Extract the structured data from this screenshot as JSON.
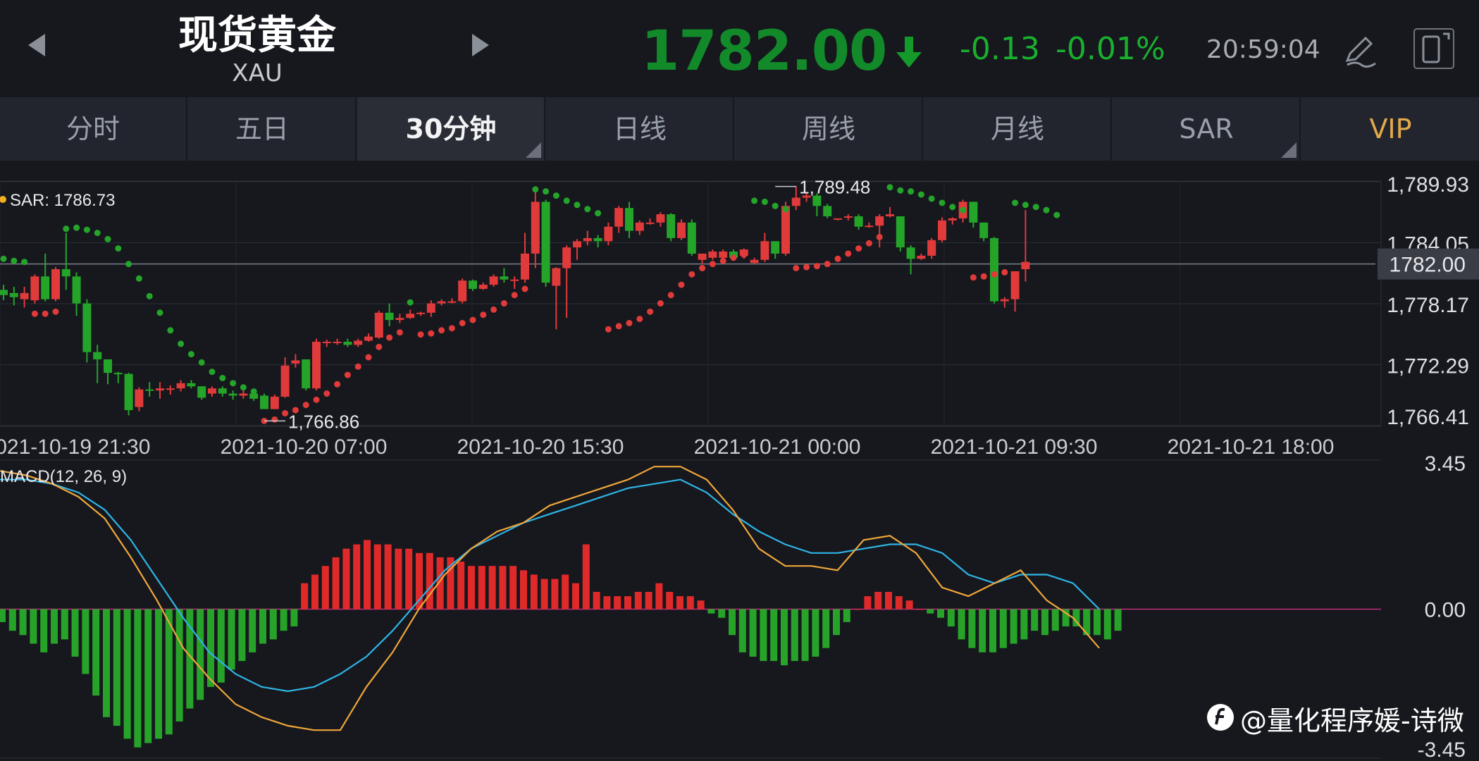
{
  "header": {
    "title": "现货黄金",
    "symbol": "XAU",
    "price": "1782.00",
    "change": "-0.13",
    "change_pct": "-0.01%",
    "time": "20:59:04",
    "icons": [
      "chevron-left-icon",
      "chevron-right-icon",
      "arrow-down-icon",
      "pen-icon",
      "rotate-screen-icon"
    ],
    "price_color": "#138a2a",
    "change_color": "#19b02e"
  },
  "tabs": [
    {
      "label": "分时"
    },
    {
      "label": "五日"
    },
    {
      "label": "30分钟"
    },
    {
      "label": "日线"
    },
    {
      "label": "周线"
    },
    {
      "label": "月线"
    },
    {
      "label": "SAR"
    },
    {
      "label": "VIP"
    }
  ],
  "active_tab": "30分钟",
  "watermark": "@量化程序媛-诗微",
  "chart_data": [
    {
      "type": "candlestick",
      "indicator_label": "SAR: 1786.73",
      "y_ticks": [
        "1,789.93",
        "1,784.05",
        "1,778.17",
        "1,772.29",
        "1,766.41"
      ],
      "ylim": [
        1766.41,
        1789.93
      ],
      "current_price": 1782.0,
      "current_price_label": "1782.00",
      "x_ticks": [
        "2021-10-19 21:30",
        "2021-10-20 07:00",
        "2021-10-20 15:30",
        "2021-10-21 00:00",
        "2021-10-21 09:30",
        "2021-10-21 18:00"
      ],
      "annotations": [
        {
          "label": "1,789.48",
          "value": 1789.48,
          "index": 74
        },
        {
          "label": "1,766.86",
          "value": 1766.86,
          "index": 25
        }
      ],
      "colors": {
        "up": "#e03a3a",
        "down": "#25a42a",
        "sar_up": "#e03a3a",
        "sar_down": "#25a42a"
      },
      "candles": [
        [
          1779.5,
          1779.0,
          1778.5,
          1780.0
        ],
        [
          1779.2,
          1778.8,
          1778.0,
          1779.8
        ],
        [
          1778.6,
          1779.2,
          1777.8,
          1779.8
        ],
        [
          1778.5,
          1780.8,
          1778.2,
          1781.0
        ],
        [
          1780.8,
          1778.6,
          1778.4,
          1783.0
        ],
        [
          1778.6,
          1781.5,
          1778.4,
          1781.7
        ],
        [
          1781.5,
          1780.8,
          1779.5,
          1785.0
        ],
        [
          1780.8,
          1778.2,
          1777.0,
          1781.2
        ],
        [
          1778.2,
          1773.5,
          1772.5,
          1778.6
        ],
        [
          1773.5,
          1772.8,
          1770.5,
          1774.2
        ],
        [
          1772.8,
          1771.5,
          1770.4,
          1772.8
        ],
        [
          1771.5,
          1771.4,
          1770.5,
          1771.6
        ],
        [
          1771.4,
          1767.9,
          1767.4,
          1771.5
        ],
        [
          1768.2,
          1769.9,
          1767.8,
          1770.1
        ],
        [
          1769.9,
          1769.8,
          1769.2,
          1770.6
        ],
        [
          1769.8,
          1770.0,
          1769.0,
          1770.6
        ],
        [
          1770.0,
          1770.0,
          1769.4,
          1770.3
        ],
        [
          1770.0,
          1770.5,
          1769.7,
          1770.8
        ],
        [
          1770.5,
          1770.2,
          1770.0,
          1770.8
        ],
        [
          1770.2,
          1769.1,
          1768.9,
          1770.2
        ],
        [
          1769.5,
          1770.0,
          1769.2,
          1770.2
        ],
        [
          1770.0,
          1769.5,
          1769.2,
          1770.2
        ],
        [
          1769.5,
          1769.3,
          1768.9,
          1769.8
        ],
        [
          1769.3,
          1769.5,
          1769.0,
          1769.9
        ],
        [
          1769.5,
          1769.0,
          1768.8,
          1769.8
        ],
        [
          1769.3,
          1768.0,
          1768.0,
          1769.5
        ],
        [
          1768.0,
          1769.2,
          1768.0,
          1769.4
        ],
        [
          1769.2,
          1772.2,
          1769.1,
          1773.0
        ],
        [
          1772.4,
          1772.7,
          1772.0,
          1773.3
        ],
        [
          1772.8,
          1770.0,
          1769.8,
          1772.8
        ],
        [
          1770.0,
          1774.5,
          1769.8,
          1774.8
        ],
        [
          1774.5,
          1774.5,
          1774.0,
          1774.7
        ],
        [
          1774.5,
          1774.5,
          1774.2,
          1774.8
        ],
        [
          1774.5,
          1774.2,
          1774.0,
          1774.8
        ],
        [
          1774.2,
          1774.6,
          1774.0,
          1774.8
        ],
        [
          1774.6,
          1775.0,
          1774.5,
          1775.3
        ],
        [
          1774.9,
          1777.3,
          1774.8,
          1777.5
        ],
        [
          1777.3,
          1776.6,
          1776.0,
          1778.2
        ],
        [
          1776.6,
          1776.8,
          1776.3,
          1777.2
        ],
        [
          1776.8,
          1777.2,
          1776.7,
          1777.6
        ],
        [
          1777.3,
          1777.3,
          1777.0,
          1777.4
        ],
        [
          1777.3,
          1778.2,
          1776.9,
          1778.5
        ],
        [
          1778.2,
          1778.4,
          1778.0,
          1778.6
        ],
        [
          1778.4,
          1778.4,
          1778.2,
          1778.7
        ],
        [
          1778.4,
          1780.4,
          1778.2,
          1780.6
        ],
        [
          1780.4,
          1779.6,
          1779.4,
          1780.5
        ],
        [
          1779.6,
          1780.0,
          1779.5,
          1780.2
        ],
        [
          1780.0,
          1780.8,
          1779.8,
          1781.0
        ],
        [
          1780.8,
          1780.5,
          1780.2,
          1781.6
        ],
        [
          1780.5,
          1780.5,
          1779.6,
          1780.8
        ],
        [
          1780.5,
          1783.0,
          1780.2,
          1785.0
        ],
        [
          1783.0,
          1788.0,
          1781.6,
          1789.2
        ],
        [
          1788.0,
          1780.2,
          1779.8,
          1788.2
        ],
        [
          1779.9,
          1781.6,
          1775.7,
          1781.7
        ],
        [
          1781.6,
          1783.6,
          1776.8,
          1783.8
        ],
        [
          1783.6,
          1784.2,
          1782.4,
          1784.4
        ],
        [
          1784.2,
          1784.5,
          1783.8,
          1785.2
        ],
        [
          1784.5,
          1784.2,
          1783.6,
          1784.8
        ],
        [
          1784.2,
          1785.6,
          1783.8,
          1786.0
        ],
        [
          1785.6,
          1787.4,
          1785.0,
          1787.6
        ],
        [
          1787.4,
          1785.2,
          1784.5,
          1788.0
        ],
        [
          1785.2,
          1786.0,
          1784.8,
          1786.2
        ],
        [
          1786.0,
          1786.0,
          1785.8,
          1786.4
        ],
        [
          1786.0,
          1786.8,
          1785.6,
          1787.0
        ],
        [
          1786.8,
          1784.5,
          1784.2,
          1786.9
        ],
        [
          1784.5,
          1786.0,
          1784.3,
          1786.3
        ],
        [
          1786.0,
          1783.0,
          1782.8,
          1786.3
        ],
        [
          1782.4,
          1783.0,
          1782.0,
          1783.0
        ],
        [
          1782.6,
          1783.2,
          1782.4,
          1783.4
        ],
        [
          1782.6,
          1783.2,
          1782.4,
          1783.4
        ],
        [
          1783.2,
          1782.6,
          1782.4,
          1783.4
        ],
        [
          1782.8,
          1783.4,
          1782.5,
          1783.5
        ],
        [
          1782.1,
          1782.4,
          1782.0,
          1782.6
        ],
        [
          1782.4,
          1784.2,
          1782.2,
          1785.0
        ],
        [
          1784.2,
          1783.0,
          1782.5,
          1784.2
        ],
        [
          1783.0,
          1787.6,
          1782.8,
          1788.0
        ],
        [
          1787.6,
          1788.4,
          1787.2,
          1789.5
        ],
        [
          1788.4,
          1788.6,
          1788.0,
          1788.9
        ],
        [
          1788.6,
          1787.6,
          1786.6,
          1788.8
        ],
        [
          1787.6,
          1786.6,
          1786.4,
          1787.8
        ],
        [
          1786.4,
          1786.4,
          1786.2,
          1786.4
        ],
        [
          1786.6,
          1786.6,
          1786.2,
          1786.8
        ],
        [
          1786.6,
          1785.6,
          1785.3,
          1786.8
        ],
        [
          1785.6,
          1785.7,
          1785.5,
          1786.0
        ],
        [
          1785.7,
          1786.6,
          1783.6,
          1786.8
        ],
        [
          1786.6,
          1786.8,
          1786.5,
          1787.5
        ],
        [
          1786.6,
          1783.6,
          1783.2,
          1786.6
        ],
        [
          1783.6,
          1782.5,
          1781.0,
          1783.8
        ],
        [
          1782.5,
          1782.8,
          1782.4,
          1783.0
        ],
        [
          1782.8,
          1784.3,
          1782.5,
          1784.5
        ],
        [
          1784.3,
          1786.2,
          1784.1,
          1786.5
        ],
        [
          1786.2,
          1786.4,
          1785.8,
          1786.5
        ],
        [
          1786.4,
          1788.0,
          1786.0,
          1788.2
        ],
        [
          1788.0,
          1786.0,
          1785.5,
          1788.0
        ],
        [
          1786.0,
          1784.5,
          1784.2,
          1786.0
        ],
        [
          1784.5,
          1778.4,
          1778.2,
          1784.6
        ],
        [
          1778.4,
          1778.6,
          1777.8,
          1778.8
        ],
        [
          1778.6,
          1781.3,
          1777.4,
          1781.3
        ],
        [
          1781.5,
          1782.2,
          1780.3,
          1787.2
        ]
      ],
      "sar": [
        [
          1782.5,
          "d"
        ],
        [
          1782.3,
          "d"
        ],
        [
          1782.2,
          "d"
        ],
        [
          1777.2,
          "u"
        ],
        [
          1777.2,
          "u"
        ],
        [
          1777.4,
          "u"
        ],
        [
          1785.4,
          "d"
        ],
        [
          1785.5,
          "d"
        ],
        [
          1785.3,
          "d"
        ],
        [
          1785.0,
          "d"
        ],
        [
          1784.4,
          "d"
        ],
        [
          1783.5,
          "d"
        ],
        [
          1782.0,
          "d"
        ],
        [
          1780.6,
          "d"
        ],
        [
          1778.9,
          "d"
        ],
        [
          1777.3,
          "d"
        ],
        [
          1775.6,
          "d"
        ],
        [
          1774.3,
          "d"
        ],
        [
          1773.3,
          "d"
        ],
        [
          1772.5,
          "d"
        ],
        [
          1771.6,
          "d"
        ],
        [
          1771.0,
          "d"
        ],
        [
          1770.5,
          "d"
        ],
        [
          1770.1,
          "d"
        ],
        [
          1769.7,
          "d"
        ],
        [
          1766.86,
          "u"
        ],
        [
          1767.0,
          "u"
        ],
        [
          1767.6,
          "u"
        ],
        [
          1767.9,
          "u"
        ],
        [
          1768.4,
          "u"
        ],
        [
          1768.9,
          "u"
        ],
        [
          1769.5,
          "u"
        ],
        [
          1770.4,
          "u"
        ],
        [
          1771.3,
          "u"
        ],
        [
          1772.1,
          "u"
        ],
        [
          1773.0,
          "u"
        ],
        [
          1774.0,
          "u"
        ],
        [
          1774.9,
          "u"
        ],
        [
          1775.4,
          "u"
        ],
        [
          1778.3,
          "d"
        ],
        [
          1775.2,
          "u"
        ],
        [
          1775.3,
          "u"
        ],
        [
          1775.6,
          "u"
        ],
        [
          1775.8,
          "u"
        ],
        [
          1776.3,
          "u"
        ],
        [
          1776.6,
          "u"
        ],
        [
          1777.1,
          "u"
        ],
        [
          1777.6,
          "u"
        ],
        [
          1778.2,
          "u"
        ],
        [
          1779.0,
          "u"
        ],
        [
          1779.6,
          "u"
        ],
        [
          1789.2,
          "d"
        ],
        [
          1789.0,
          "d"
        ],
        [
          1788.6,
          "d"
        ],
        [
          1788.1,
          "d"
        ],
        [
          1787.7,
          "d"
        ],
        [
          1787.3,
          "d"
        ],
        [
          1786.9,
          "d"
        ],
        [
          1775.7,
          "u"
        ],
        [
          1776.0,
          "u"
        ],
        [
          1776.3,
          "u"
        ],
        [
          1776.7,
          "u"
        ],
        [
          1777.4,
          "u"
        ],
        [
          1778.2,
          "u"
        ],
        [
          1779.0,
          "u"
        ],
        [
          1780.0,
          "u"
        ],
        [
          1781.0,
          "u"
        ],
        [
          1781.6,
          "u"
        ],
        [
          1782.0,
          "u"
        ],
        [
          1782.3,
          "u"
        ],
        [
          1782.6,
          "u"
        ],
        [
          1782.9,
          "u"
        ],
        [
          1788.1,
          "d"
        ],
        [
          1788.0,
          "d"
        ],
        [
          1787.6,
          "d"
        ],
        [
          1787.3,
          "d"
        ],
        [
          1781.6,
          "u"
        ],
        [
          1781.7,
          "u"
        ],
        [
          1781.8,
          "u"
        ],
        [
          1782.0,
          "u"
        ],
        [
          1782.5,
          "u"
        ],
        [
          1783.0,
          "u"
        ],
        [
          1783.5,
          "u"
        ],
        [
          1784.0,
          "u"
        ],
        [
          1784.6,
          "u"
        ],
        [
          1789.4,
          "d"
        ],
        [
          1789.1,
          "d"
        ],
        [
          1789.0,
          "d"
        ],
        [
          1788.7,
          "d"
        ],
        [
          1788.3,
          "d"
        ],
        [
          1787.9,
          "d"
        ],
        [
          1787.5,
          "d"
        ],
        [
          1787.2,
          "d"
        ],
        [
          1780.7,
          "u"
        ],
        [
          1780.8,
          "u"
        ],
        [
          1781.0,
          "u"
        ],
        [
          1781.2,
          "u"
        ],
        [
          1787.9,
          "d"
        ],
        [
          1787.7,
          "d"
        ],
        [
          1787.5,
          "d"
        ],
        [
          1787.2,
          "d"
        ],
        [
          1786.73,
          "d"
        ]
      ]
    },
    {
      "type": "macd",
      "label": "MACD(12, 26, 9)",
      "y_ticks": [
        "3.45",
        "0.00",
        "-3.45"
      ],
      "ylim": [
        -3.45,
        3.45
      ],
      "colors": {
        "dif": "#f0a63a",
        "dea": "#2fb4e6",
        "hist_pos": "#e02a2a",
        "hist_neg": "#28a32a"
      },
      "hist": [
        -0.3,
        -0.5,
        -0.6,
        -0.8,
        -1.0,
        -0.8,
        -0.7,
        -1.1,
        -1.5,
        -2.0,
        -2.5,
        -2.7,
        -3.0,
        -3.2,
        -3.1,
        -3.0,
        -2.9,
        -2.6,
        -2.3,
        -2.1,
        -1.8,
        -1.7,
        -1.4,
        -1.2,
        -1.0,
        -0.8,
        -0.7,
        -0.5,
        -0.4,
        0.6,
        0.8,
        1.0,
        1.2,
        1.4,
        1.5,
        1.6,
        1.5,
        1.5,
        1.4,
        1.4,
        1.3,
        1.3,
        1.2,
        1.2,
        1.1,
        1.0,
        1.0,
        1.0,
        1.0,
        1.0,
        0.9,
        0.8,
        0.7,
        0.7,
        0.8,
        0.6,
        1.5,
        0.4,
        0.3,
        0.3,
        0.3,
        0.4,
        0.4,
        0.6,
        0.4,
        0.3,
        0.3,
        0.2,
        -0.1,
        -0.2,
        -0.6,
        -1.0,
        -1.1,
        -1.2,
        -1.2,
        -1.3,
        -1.2,
        -1.2,
        -1.1,
        -0.9,
        -0.6,
        -0.3,
        0.0,
        0.3,
        0.4,
        0.4,
        0.3,
        0.2,
        0.0,
        -0.1,
        -0.2,
        -0.4,
        -0.7,
        -0.9,
        -1.0,
        -1.0,
        -0.9,
        -0.8,
        -0.7,
        -0.5,
        -0.6,
        -0.5,
        -0.4,
        -0.4,
        -0.6,
        -0.6,
        -0.7,
        -0.5
      ],
      "dif": [
        3.2,
        3.1,
        2.9,
        2.6,
        2.1,
        1.2,
        0.2,
        -0.9,
        -1.6,
        -2.2,
        -2.5,
        -2.7,
        -2.8,
        -2.8,
        -1.8,
        -1.0,
        0.0,
        0.8,
        1.4,
        1.8,
        2.0,
        2.4,
        2.6,
        2.8,
        3.0,
        3.3,
        3.3,
        3.0,
        2.3,
        1.4,
        1.0,
        1.0,
        0.9,
        1.6,
        1.7,
        1.3,
        0.5,
        0.3,
        0.6,
        0.9,
        0.2,
        -0.2,
        -0.9
      ],
      "dea": [
        3.0,
        3.0,
        2.9,
        2.7,
        2.3,
        1.6,
        0.7,
        -0.2,
        -1.0,
        -1.5,
        -1.8,
        -1.9,
        -1.8,
        -1.5,
        -1.1,
        -0.5,
        0.2,
        0.9,
        1.4,
        1.7,
        2.0,
        2.2,
        2.4,
        2.6,
        2.8,
        2.9,
        3.0,
        2.7,
        2.2,
        1.8,
        1.5,
        1.3,
        1.3,
        1.4,
        1.5,
        1.5,
        1.3,
        0.8,
        0.6,
        0.8,
        0.8,
        0.6,
        0.0
      ]
    }
  ]
}
